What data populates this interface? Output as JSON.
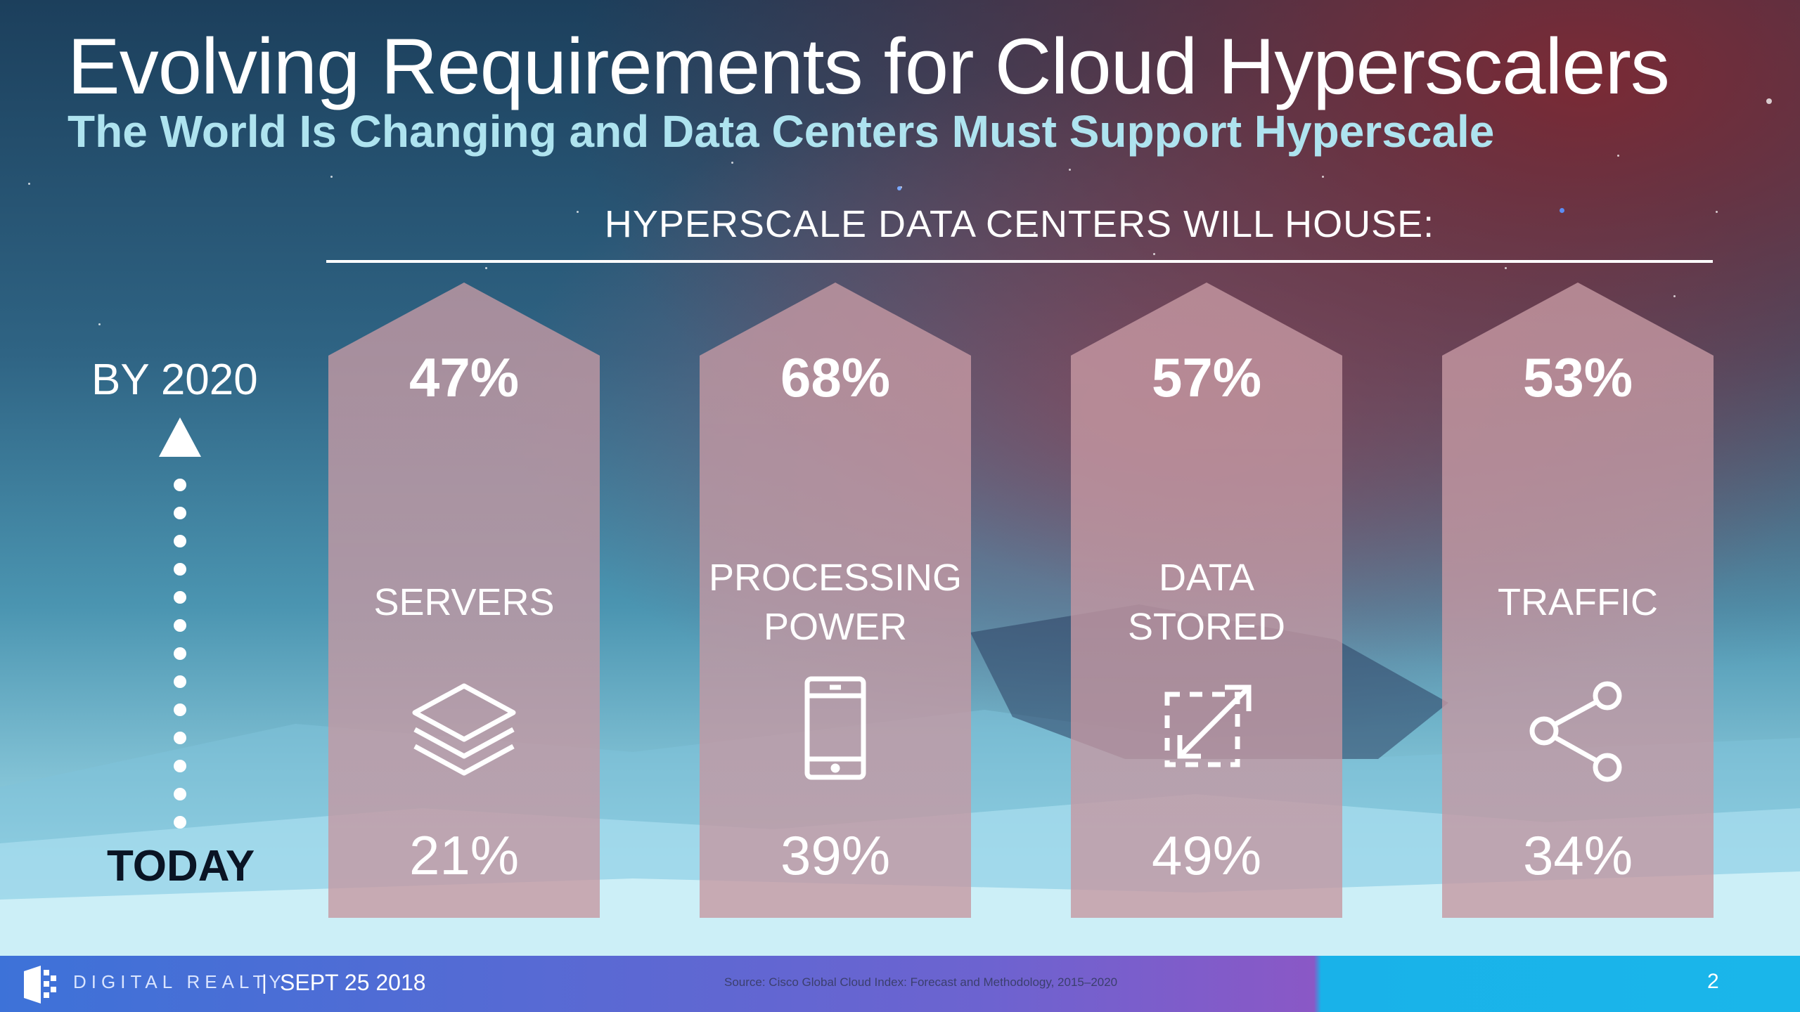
{
  "slide": {
    "title": "Evolving Requirements for Cloud Hyperscalers",
    "subtitle": "The World Is Changing and Data Centers Must Support Hyperscale",
    "section_heading": "HYPERSCALE DATA CENTERS WILL HOUSE:",
    "timeline": {
      "top_label": "BY 2020",
      "bottom_label": "TODAY"
    },
    "columns": [
      {
        "label": "SERVERS",
        "value_2020": "47%",
        "value_today": "21%",
        "icon": "layers-icon"
      },
      {
        "label": "PROCESSING POWER",
        "value_2020": "68%",
        "value_today": "39%",
        "icon": "mobile-device-icon"
      },
      {
        "label": "DATA STORED",
        "value_2020": "57%",
        "value_today": "49%",
        "icon": "expand-icon"
      },
      {
        "label": "TRAFFIC",
        "value_2020": "53%",
        "value_today": "34%",
        "icon": "share-icon"
      }
    ]
  },
  "footer": {
    "brand": "DIGITAL REALTY",
    "divider": "|",
    "date": "SEPT 25 2018",
    "source": "Source: Cisco Global Cloud Index: Forecast and Methodology, 2015–2020",
    "page_number": "2"
  },
  "colors": {
    "column_fill": "#c596a0",
    "subtitle": "#aee3ef",
    "footer_start": "#3d72d8",
    "footer_end": "#1ab6ea"
  }
}
